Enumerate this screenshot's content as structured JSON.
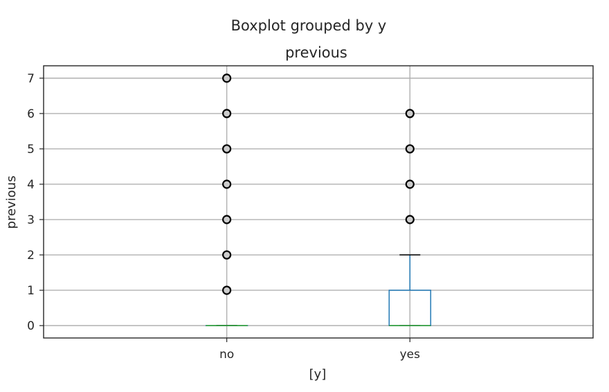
{
  "chart_data": {
    "type": "boxplot",
    "title": "Boxplot grouped by y",
    "subtitle": "previous",
    "xlabel": "[y]",
    "ylabel": "previous",
    "categories": [
      "no",
      "yes"
    ],
    "yticks": [
      0,
      1,
      2,
      3,
      4,
      5,
      6,
      7
    ],
    "ylim": [
      -0.35,
      7.35
    ],
    "grid": true,
    "colors": {
      "box": "#1f77b4",
      "median": "#2ca02c",
      "whisker": "#000000",
      "grid": "#b0b0b0",
      "flier_edge": "#000000",
      "flier_face": "#cccccc"
    },
    "boxes": [
      {
        "category": "no",
        "q1": 0,
        "median": 0,
        "q3": 0,
        "whisker_low": 0,
        "whisker_high": 0,
        "fliers": [
          1,
          2,
          3,
          4,
          5,
          6,
          7
        ]
      },
      {
        "category": "yes",
        "q1": 0,
        "median": 0,
        "q3": 1,
        "whisker_low": 0,
        "whisker_high": 2,
        "fliers": [
          3,
          4,
          5,
          6
        ]
      }
    ]
  }
}
